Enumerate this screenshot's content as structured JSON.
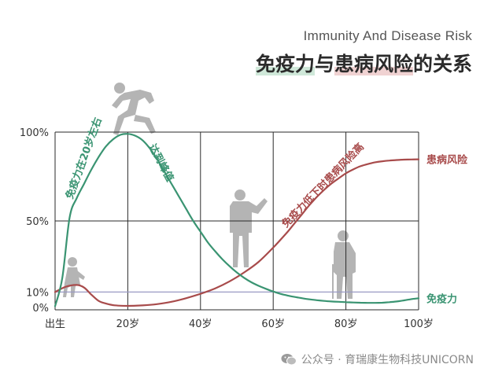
{
  "header": {
    "subtitle": "Immunity And Disease Risk",
    "title_part1": "免疫力",
    "title_part2": "与",
    "title_part3": "患病风险",
    "title_part4": "的关系"
  },
  "watermark": {
    "text": "公众号 · 育瑞康生物科技UNICORN",
    "icon": "wechat-icon"
  },
  "chart_data": {
    "type": "line",
    "title": "免疫力与患病风险的关系",
    "xlabel": "",
    "ylabel": "",
    "x_ticks": [
      "出生",
      "20岁",
      "40岁",
      "60岁",
      "80岁",
      "100岁"
    ],
    "x_tick_values": [
      0,
      20,
      40,
      60,
      80,
      100
    ],
    "y_ticks": [
      "0%",
      "10%",
      "50%",
      "100%"
    ],
    "y_tick_values": [
      0,
      10,
      50,
      100
    ],
    "xlim": [
      0,
      100
    ],
    "ylim": [
      0,
      100
    ],
    "grid": true,
    "reference_line": {
      "y": 10,
      "color": "#9a9ac4"
    },
    "series": [
      {
        "name": "免疫力",
        "color": "#3a9472",
        "x": [
          0,
          2,
          4,
          6,
          8,
          10,
          12,
          14,
          16,
          18,
          20,
          22,
          24,
          26,
          28,
          30,
          32,
          34,
          36,
          38,
          40,
          42,
          44,
          46,
          48,
          50,
          52,
          54,
          56,
          58,
          60,
          62,
          64,
          66,
          68,
          70,
          72,
          74,
          76,
          78,
          80,
          82,
          84,
          86,
          88,
          90,
          92,
          94,
          96,
          98,
          100
        ],
        "y": [
          2,
          18,
          52,
          63,
          71,
          79,
          86,
          92,
          96,
          98.5,
          99,
          98,
          95.5,
          91,
          85,
          78,
          71,
          64,
          57,
          50,
          44,
          38,
          33,
          28.5,
          24.5,
          21,
          18,
          15.5,
          13.5,
          11.8,
          10.3,
          9,
          8,
          7.2,
          6.5,
          5.9,
          5.4,
          5,
          4.7,
          4.5,
          4.3,
          4.1,
          4,
          3.9,
          3.9,
          4,
          4.3,
          4.7,
          5.3,
          6,
          6.5
        ]
      },
      {
        "name": "患病风险",
        "color": "#a84b4b",
        "x": [
          0,
          3,
          6,
          8,
          10,
          12,
          14,
          16,
          18,
          20,
          24,
          28,
          32,
          36,
          40,
          44,
          48,
          52,
          56,
          60,
          64,
          66,
          68,
          70,
          72,
          74,
          76,
          78,
          80,
          82,
          84,
          86,
          88,
          90,
          92,
          94,
          96,
          98,
          100
        ],
        "y": [
          10,
          13,
          14,
          12.5,
          8.5,
          5,
          3.5,
          2.6,
          2.3,
          2.2,
          2.5,
          3.2,
          4.5,
          6.5,
          9,
          12,
          16,
          21,
          27,
          35,
          44,
          49,
          54,
          59,
          63.5,
          67.5,
          71,
          74,
          76.8,
          79,
          80.8,
          82,
          83,
          83.6,
          84,
          84.3,
          84.5,
          84.6,
          84.7
        ]
      }
    ],
    "annotations": [
      {
        "text": "免疫力在20岁左右",
        "series": "免疫力",
        "position": "rising-segment"
      },
      {
        "text": "达到峰值",
        "series": "免疫力",
        "position": "after-peak"
      },
      {
        "text": "免疫力低下时患病风险高",
        "series": "患病风险",
        "position": "rising-segment"
      }
    ],
    "silhouettes": [
      "baby-figure",
      "running-figure",
      "adult-figure",
      "elderly-figure"
    ]
  }
}
